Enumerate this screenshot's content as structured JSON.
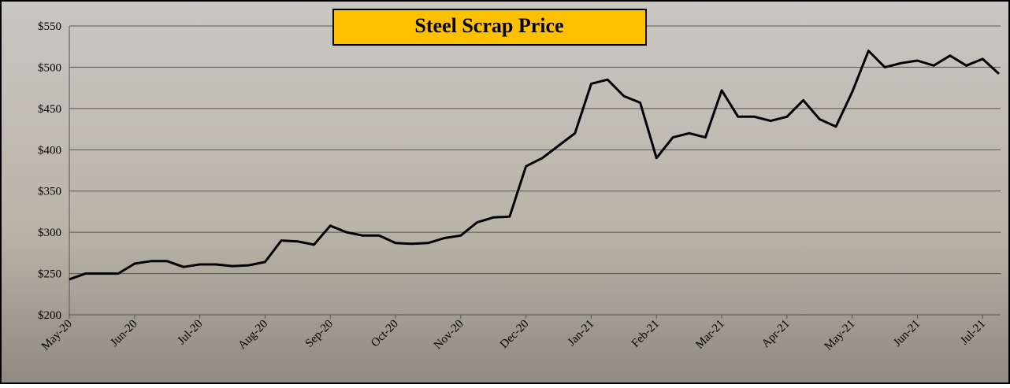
{
  "chart_data": {
    "type": "line",
    "title": "Steel Scrap Price",
    "categories": [
      "May-20",
      null,
      null,
      null,
      "Jun-20",
      null,
      null,
      null,
      "Jul-20",
      null,
      null,
      null,
      "Aug-20",
      null,
      null,
      null,
      "Sep-20",
      null,
      null,
      null,
      "Oct-20",
      null,
      null,
      null,
      "Nov-20",
      null,
      null,
      null,
      "Dec-20",
      null,
      null,
      null,
      "Jan-21",
      null,
      null,
      null,
      "Feb-21",
      null,
      null,
      null,
      "Mar-21",
      null,
      null,
      null,
      "Apr-21",
      null,
      null,
      null,
      "May-21",
      null,
      null,
      null,
      "Jun-21",
      null,
      null,
      null,
      "Jul-21",
      null
    ],
    "series": [
      {
        "name": "Steel Scrap Price",
        "color": "#000000",
        "values": [
          243,
          250,
          250,
          250,
          262,
          265,
          265,
          258,
          261,
          261,
          259,
          260,
          264,
          290,
          289,
          285,
          308,
          300,
          296,
          296,
          287,
          286,
          287,
          293,
          296,
          312,
          318,
          319,
          380,
          390,
          405,
          420,
          480,
          485,
          465,
          457,
          390,
          415,
          420,
          415,
          472,
          440,
          440,
          435,
          440,
          460,
          437,
          428,
          470,
          520,
          500,
          505,
          508,
          502,
          514,
          502,
          510,
          492
        ]
      }
    ],
    "ylim": [
      200,
      550
    ],
    "yticks": [
      {
        "value": 200,
        "label": "$200"
      },
      {
        "value": 250,
        "label": "$250"
      },
      {
        "value": 300,
        "label": "$300"
      },
      {
        "value": 350,
        "label": "$350"
      },
      {
        "value": 400,
        "label": "$400"
      },
      {
        "value": 450,
        "label": "$450"
      },
      {
        "value": 500,
        "label": "$500"
      },
      {
        "value": 550,
        "label": "$550"
      }
    ],
    "grid": true
  }
}
